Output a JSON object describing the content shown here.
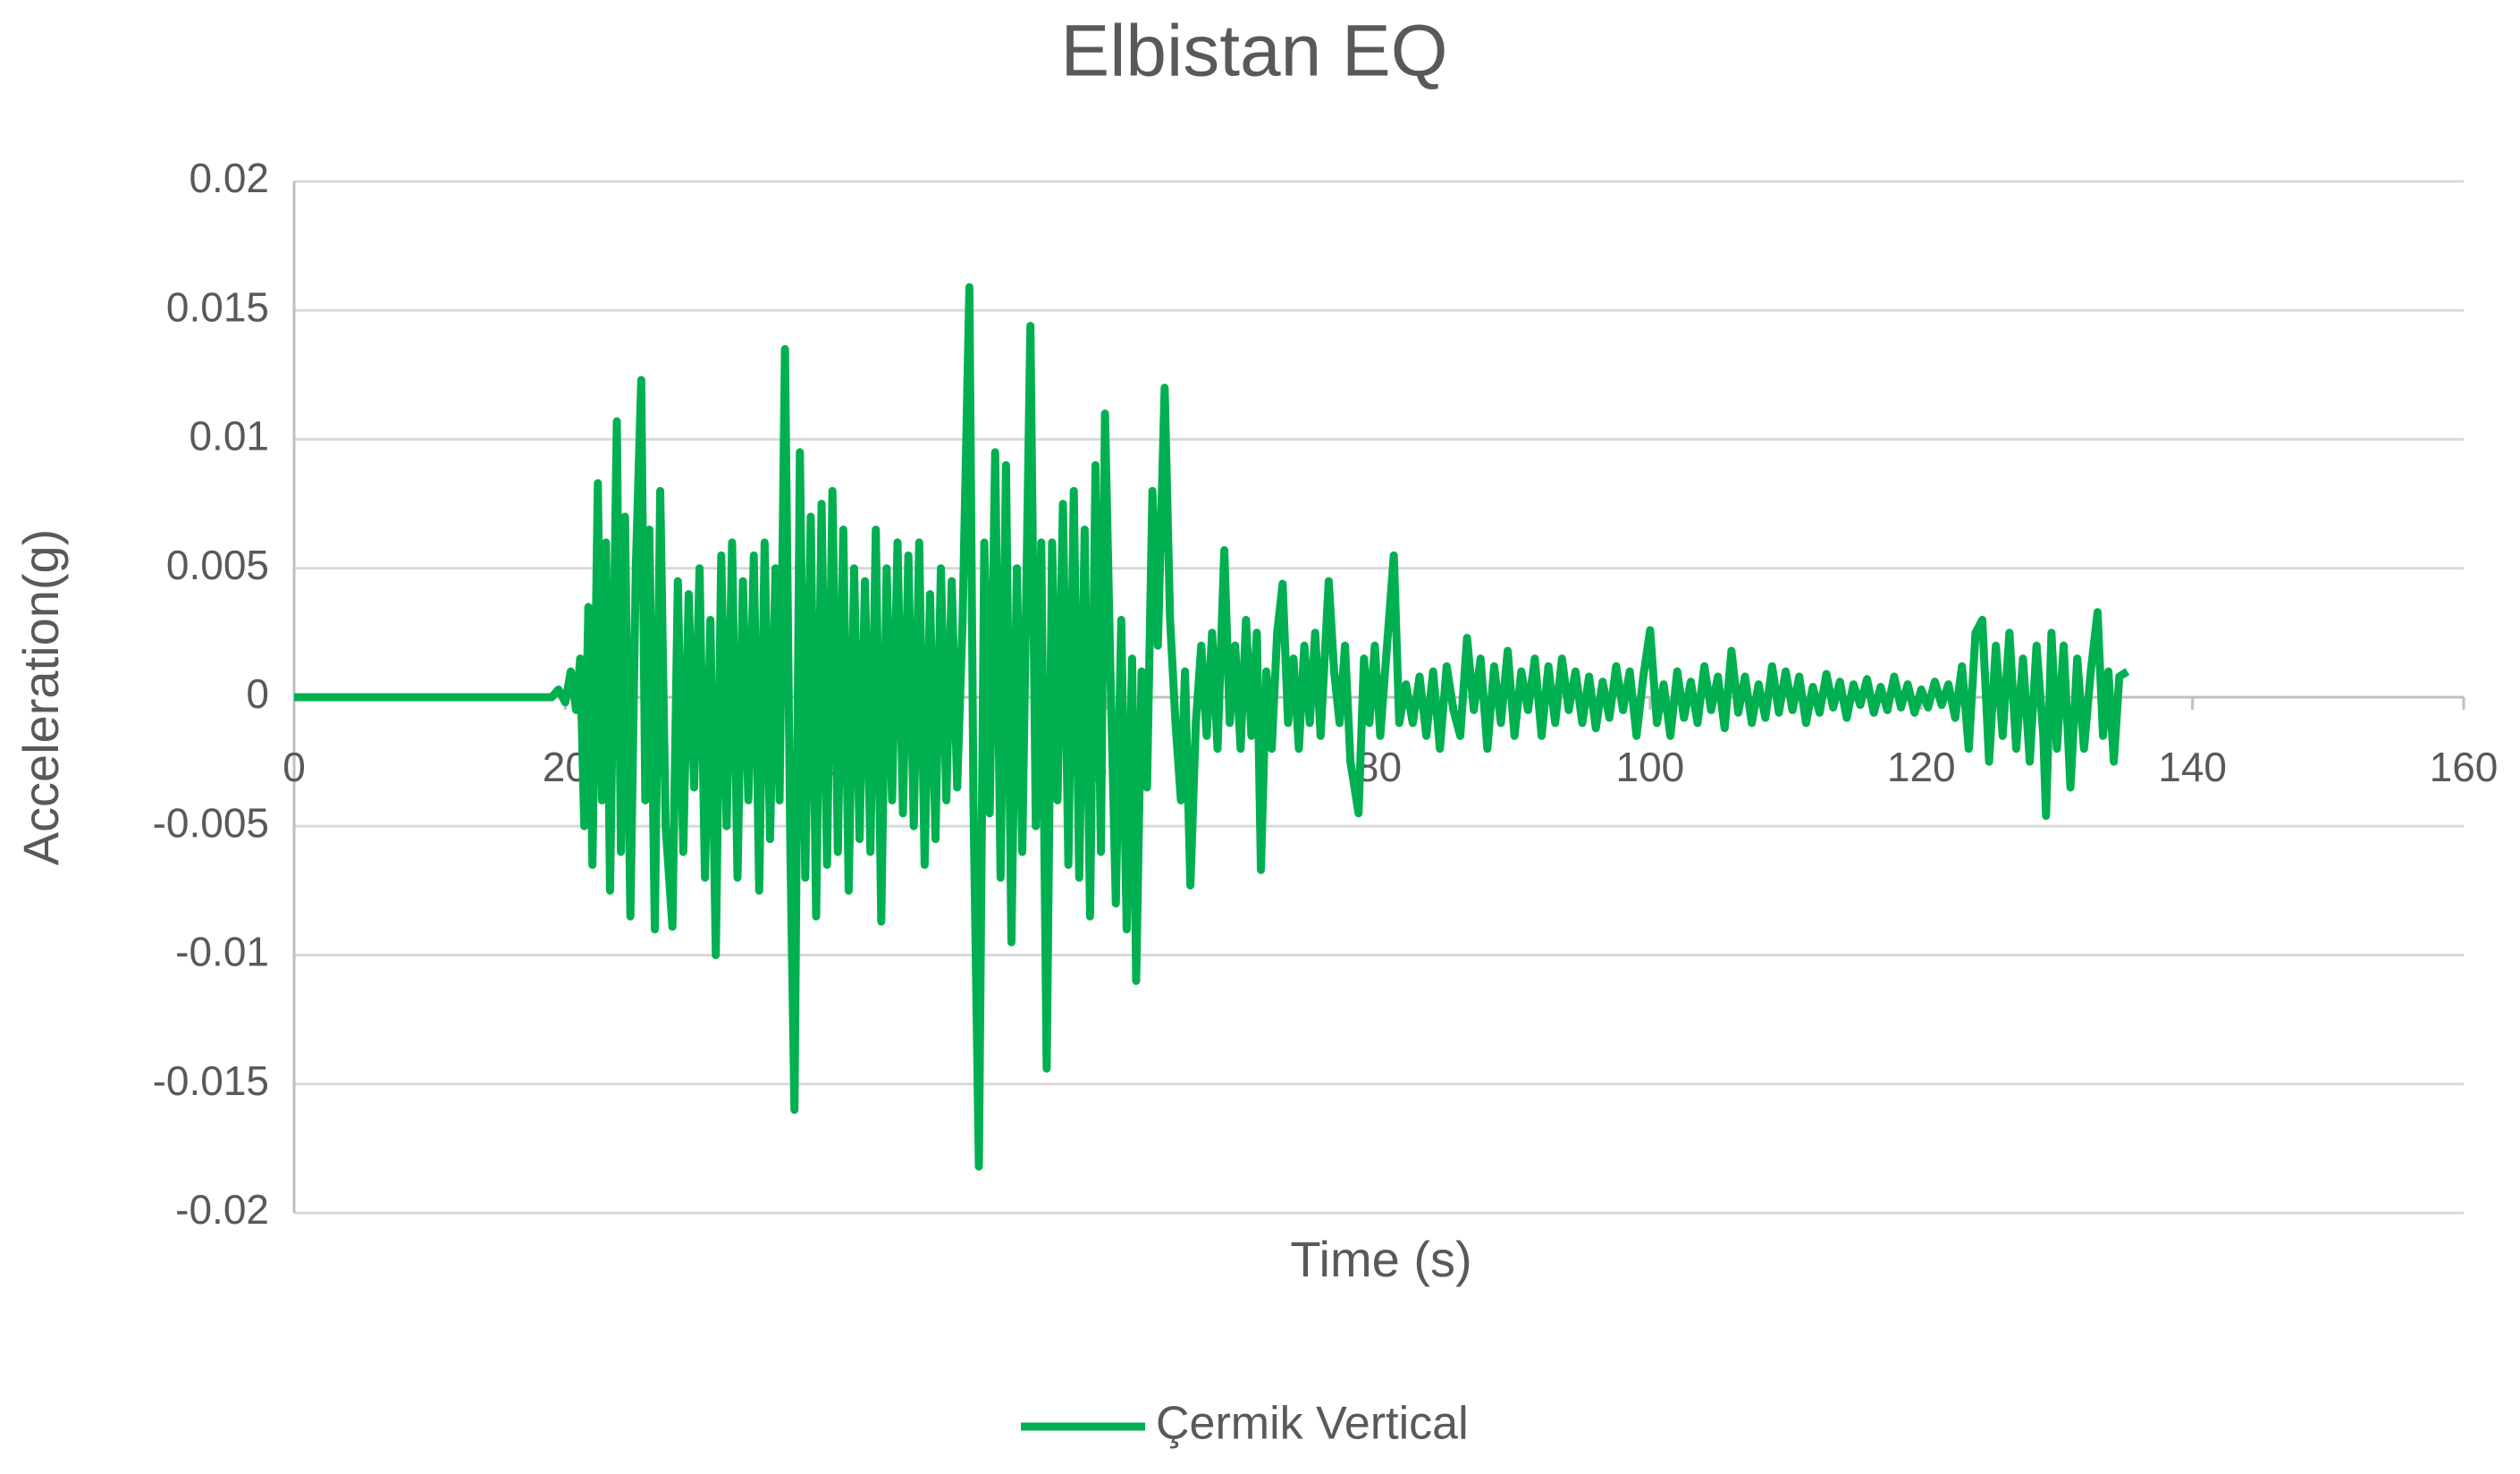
{
  "chart_data": {
    "type": "line",
    "title": "Elbistan EQ",
    "x_label": "Time (s)",
    "y_label": "Acceleration(g)",
    "xlim": [
      0,
      160
    ],
    "xticks": [
      0,
      20,
      40,
      60,
      80,
      100,
      120,
      140,
      160
    ],
    "ylim": [
      -0.02,
      0.02
    ],
    "yticks": [
      0.02,
      0.015,
      0.01,
      0.005,
      0,
      -0.005,
      -0.01,
      -0.015,
      -0.02
    ],
    "grid": true,
    "legend": "bottom",
    "x": [
      0,
      10,
      19,
      19.5,
      20,
      20.4,
      20.8,
      21.1,
      21.4,
      21.7,
      22,
      22.4,
      22.7,
      23,
      23.3,
      23.8,
      24.1,
      24.4,
      24.8,
      25.2,
      25.6,
      25.9,
      26.2,
      26.6,
      27,
      27.4,
      27.9,
      28.3,
      28.7,
      29.1,
      29.5,
      29.9,
      30.3,
      30.7,
      31.1,
      31.5,
      31.9,
      32.3,
      32.7,
      33.1,
      33.5,
      33.9,
      34.3,
      34.7,
      35.1,
      35.5,
      35.8,
      36.2,
      36.6,
      36.9,
      37.3,
      37.7,
      38.1,
      38.5,
      38.9,
      39.3,
      39.7,
      40.1,
      40.5,
      40.9,
      41.3,
      41.7,
      42.1,
      42.5,
      42.9,
      43.3,
      43.7,
      44.1,
      44.5,
      44.9,
      45.3,
      45.7,
      46.1,
      46.5,
      46.9,
      47.3,
      47.7,
      48.1,
      48.5,
      48.9,
      49.3,
      49.8,
      50.1,
      50.5,
      50.9,
      51.3,
      51.7,
      52.1,
      52.5,
      52.9,
      53.3,
      53.7,
      54.3,
      54.7,
      55.1,
      55.5,
      55.9,
      56.3,
      56.7,
      57.1,
      57.5,
      57.9,
      58.3,
      58.7,
      59.1,
      59.5,
      59.8,
      60.2,
      60.6,
      61,
      61.4,
      61.8,
      62.1,
      62.5,
      62.9,
      63.3,
      63.7,
      64.2,
      64.6,
      65,
      65.4,
      65.7,
      66.1,
      66.5,
      66.9,
      67.3,
      67.7,
      68.1,
      68.6,
      69,
      69.4,
      69.8,
      70.2,
      70.6,
      71,
      71.3,
      71.7,
      72.1,
      72.5,
      72.9,
      73.3,
      73.7,
      74.1,
      74.5,
      74.9,
      75.3,
      75.7,
      76.3,
      76.7,
      77.1,
      77.5,
      77.9,
      78.5,
      78.9,
      79.3,
      79.7,
      80.1,
      80.6,
      81.1,
      81.5,
      82,
      82.5,
      83,
      83.5,
      84,
      84.5,
      85,
      85.5,
      86,
      86.5,
      87,
      87.5,
      88,
      88.5,
      89,
      89.5,
      90,
      90.5,
      91,
      91.5,
      92,
      92.5,
      93,
      93.5,
      94,
      94.5,
      95,
      95.5,
      96,
      96.5,
      97,
      97.5,
      98,
      98.5,
      99,
      99.5,
      100,
      100.5,
      101,
      101.5,
      102,
      102.5,
      103,
      103.5,
      104,
      104.5,
      105,
      105.5,
      106,
      106.5,
      107,
      107.5,
      108,
      108.5,
      109,
      109.5,
      110,
      110.5,
      111,
      111.5,
      112,
      112.5,
      113,
      113.5,
      114,
      114.5,
      115,
      115.5,
      116,
      116.5,
      117,
      117.5,
      118,
      118.5,
      119,
      119.5,
      120,
      120.5,
      121,
      121.5,
      122,
      122.5,
      123,
      123.5,
      124,
      124.5,
      125,
      125.5,
      126,
      126.5,
      127,
      127.5,
      128,
      128.5,
      129,
      129.2,
      129.6,
      130,
      130.5,
      131,
      131.5,
      132,
      132.5,
      133,
      133.4,
      133.8,
      134.2,
      134.6,
      135.2
    ],
    "series": [
      {
        "name": "Çermik Vertical",
        "color": "#00b050",
        "values": [
          0,
          0,
          0,
          0.0003,
          -0.0002,
          0.001,
          -0.0005,
          0.0015,
          -0.005,
          0.0035,
          -0.0065,
          0.0083,
          -0.004,
          0.006,
          -0.0075,
          0.0107,
          -0.006,
          0.007,
          -0.0085,
          0.005,
          0.0123,
          -0.004,
          0.0065,
          -0.009,
          0.008,
          -0.005,
          -0.0089,
          0.0045,
          -0.006,
          0.004,
          -0.0035,
          0.005,
          -0.007,
          0.003,
          -0.01,
          0.0055,
          -0.005,
          0.006,
          -0.007,
          0.0045,
          -0.004,
          0.0055,
          -0.0075,
          0.006,
          -0.0055,
          0.005,
          -0.004,
          0.0135,
          -0.006,
          -0.016,
          0.0095,
          -0.007,
          0.007,
          -0.0085,
          0.0075,
          -0.0065,
          0.008,
          -0.006,
          0.0065,
          -0.0075,
          0.005,
          -0.0055,
          0.0045,
          -0.006,
          0.0065,
          -0.0087,
          0.005,
          -0.004,
          0.006,
          -0.0045,
          0.0055,
          -0.005,
          0.006,
          -0.0065,
          0.004,
          -0.0055,
          0.005,
          -0.004,
          0.0045,
          -0.0035,
          0.003,
          0.0159,
          -0.004,
          -0.0182,
          0.006,
          -0.0045,
          0.0095,
          -0.007,
          0.009,
          -0.0095,
          0.005,
          -0.006,
          0.0144,
          -0.005,
          0.006,
          -0.0144,
          0.006,
          -0.004,
          0.0075,
          -0.0065,
          0.008,
          -0.007,
          0.0065,
          -0.0085,
          0.009,
          -0.006,
          0.011,
          0.001,
          -0.008,
          0.003,
          -0.009,
          0.0015,
          -0.011,
          0.001,
          -0.0035,
          0.008,
          0.002,
          0.012,
          0.003,
          -0.001,
          -0.004,
          0.001,
          -0.0073,
          -0.001,
          0.002,
          -0.0015,
          0.0025,
          -0.002,
          0.0057,
          -0.001,
          0.002,
          -0.002,
          0.003,
          -0.0015,
          0.0025,
          -0.0067,
          0.001,
          -0.002,
          0.0025,
          0.0044,
          -0.001,
          0.0015,
          -0.002,
          0.002,
          -0.001,
          0.0025,
          -0.0015,
          0.0045,
          0.001,
          -0.001,
          0.002,
          -0.0025,
          -0.0045,
          0.0015,
          -0.001,
          0.002,
          -0.0015,
          0.002,
          0.0055,
          -0.001,
          0.0005,
          -0.001,
          0.0008,
          -0.0015,
          0.001,
          -0.002,
          0.0012,
          -0.0005,
          -0.0015,
          0.0023,
          -0.0005,
          0.0015,
          -0.002,
          0.0012,
          -0.001,
          0.0018,
          -0.0015,
          0.001,
          -0.0005,
          0.0015,
          -0.0015,
          0.0012,
          -0.001,
          0.0015,
          -0.0005,
          0.001,
          -0.001,
          0.0008,
          -0.0012,
          0.0006,
          -0.0008,
          0.0012,
          -0.0005,
          0.001,
          -0.0015,
          0.0008,
          0.0026,
          -0.001,
          0.0005,
          -0.0015,
          0.001,
          -0.0008,
          0.0006,
          -0.001,
          0.0012,
          -0.0005,
          0.0008,
          -0.0012,
          0.0018,
          -0.0006,
          0.0008,
          -0.001,
          0.0005,
          -0.0008,
          0.0012,
          -0.0006,
          0.001,
          -0.0005,
          0.0008,
          -0.001,
          0.0004,
          -0.0006,
          0.0009,
          -0.0004,
          0.0006,
          -0.0008,
          0.0005,
          -0.0003,
          0.0007,
          -0.0006,
          0.0004,
          -0.0005,
          0.0008,
          -0.0004,
          0.0005,
          -0.0006,
          0.0003,
          -0.0004,
          0.0006,
          -0.0003,
          0.0005,
          -0.0008,
          0.0012,
          -0.002,
          0.0025,
          0.003,
          -0.0025,
          0.002,
          -0.0015,
          0.0025,
          -0.002,
          0.0015,
          -0.0025,
          0.002,
          -0.0015,
          -0.0046,
          0.0025,
          -0.002,
          0.002,
          -0.0035,
          0.0015,
          -0.002,
          0.001,
          0.0033,
          -0.0015,
          0.001,
          -0.0025,
          0.0008,
          0.001
        ]
      }
    ]
  }
}
